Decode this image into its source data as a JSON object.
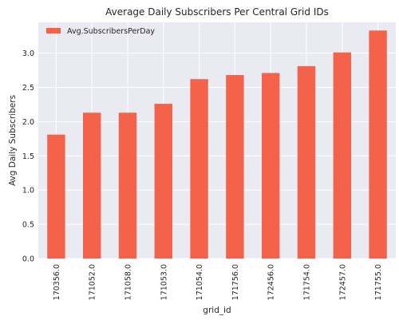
{
  "chart_data": {
    "type": "bar",
    "title": "Average Daily Subscribers Per Central Grid IDs",
    "xlabel": "grid_id",
    "ylabel": "Avg Daily Subscribers",
    "categories": [
      "170356.0",
      "171052.0",
      "171058.0",
      "171053.0",
      "171054.0",
      "171756.0",
      "172456.0",
      "171754.0",
      "172457.0",
      "171755.0"
    ],
    "series": [
      {
        "name": "Avg.SubscribersPerDay",
        "color": "#f4624a",
        "values": [
          1.81,
          2.13,
          2.13,
          2.26,
          2.62,
          2.68,
          2.71,
          2.81,
          3.01,
          3.33
        ]
      }
    ],
    "ylim": [
      0,
      3.45
    ],
    "yticks": [
      0.0,
      0.5,
      1.0,
      1.5,
      2.0,
      2.5,
      3.0
    ],
    "ytick_labels": [
      "0.0",
      "0.5",
      "1.0",
      "1.5",
      "2.0",
      "2.5",
      "3.0"
    ],
    "grid": true,
    "legend_position": "top-left",
    "colors": {
      "background": "#eaeaf2",
      "grid": "#ffffff"
    }
  }
}
